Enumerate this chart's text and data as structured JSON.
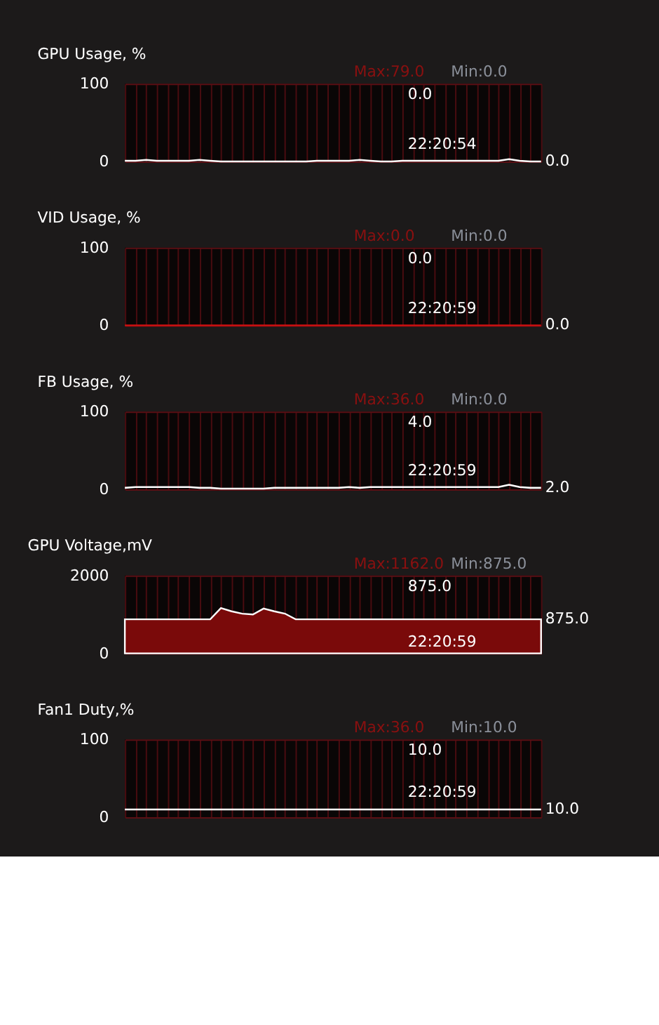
{
  "chart_data": [
    {
      "type": "line",
      "title": "GPU Usage, %",
      "categories": [
        null,
        null,
        null,
        null,
        null,
        null,
        null,
        null,
        null,
        null,
        null,
        null,
        null,
        null,
        null,
        null,
        null,
        null,
        null,
        null,
        null,
        null,
        null,
        null,
        null,
        null,
        null,
        null,
        null,
        null,
        null,
        null,
        null,
        null,
        null,
        null,
        null,
        null,
        null,
        null
      ],
      "ylim": [
        0,
        100
      ],
      "yticks": [
        0,
        100
      ],
      "tick_labels": "y",
      "grid": true,
      "series": [
        {
          "color": "#ffffff",
          "values": [
            1,
            1,
            2,
            1,
            1,
            1,
            1,
            2,
            1,
            0,
            0,
            0,
            0,
            0,
            0,
            0,
            0,
            0,
            1,
            1,
            1,
            1,
            2,
            1,
            0,
            0,
            1,
            1,
            1,
            1,
            1,
            1,
            1,
            1,
            1,
            1,
            3,
            1,
            0,
            0
          ]
        }
      ],
      "annotations": [
        "Max:79.0",
        "Min:0.0",
        "0.0",
        "22:20:54",
        "0.0"
      ]
    },
    {
      "type": "line",
      "title": "VID Usage, %",
      "categories": [
        null,
        null,
        null,
        null,
        null,
        null,
        null,
        null,
        null,
        null,
        null,
        null,
        null,
        null,
        null,
        null,
        null,
        null,
        null,
        null,
        null,
        null,
        null,
        null,
        null,
        null,
        null,
        null,
        null,
        null,
        null,
        null,
        null,
        null,
        null,
        null,
        null,
        null,
        null,
        null
      ],
      "ylim": [
        0,
        100
      ],
      "yticks": [
        0,
        100
      ],
      "tick_labels": "y",
      "grid": true,
      "series": [
        {
          "color": "#cc1111",
          "values": [
            0,
            0,
            0,
            0,
            0,
            0,
            0,
            0,
            0,
            0,
            0,
            0,
            0,
            0,
            0,
            0,
            0,
            0,
            0,
            0,
            0,
            0,
            0,
            0,
            0,
            0,
            0,
            0,
            0,
            0,
            0,
            0,
            0,
            0,
            0,
            0,
            0,
            0,
            0,
            0
          ]
        }
      ],
      "annotations": [
        "Max:0.0",
        "Min:0.0",
        "0.0",
        "22:20:59",
        "0.0"
      ]
    },
    {
      "type": "line",
      "title": "FB Usage, %",
      "categories": [
        null,
        null,
        null,
        null,
        null,
        null,
        null,
        null,
        null,
        null,
        null,
        null,
        null,
        null,
        null,
        null,
        null,
        null,
        null,
        null,
        null,
        null,
        null,
        null,
        null,
        null,
        null,
        null,
        null,
        null,
        null,
        null,
        null,
        null,
        null,
        null,
        null,
        null,
        null,
        null
      ],
      "ylim": [
        0,
        100
      ],
      "yticks": [
        0,
        100
      ],
      "tick_labels": "y",
      "grid": true,
      "series": [
        {
          "color": "#ffffff",
          "values": [
            2,
            3,
            3,
            3,
            3,
            3,
            3,
            2,
            2,
            1,
            1,
            1,
            1,
            1,
            2,
            2,
            2,
            2,
            2,
            2,
            2,
            3,
            2,
            3,
            3,
            3,
            3,
            3,
            3,
            3,
            3,
            3,
            3,
            3,
            3,
            3,
            6,
            3,
            2,
            2
          ]
        }
      ],
      "annotations": [
        "Max:36.0",
        "Min:0.0",
        "4.0",
        "22:20:59",
        "2.0"
      ]
    },
    {
      "type": "area",
      "title": "GPU Voltage,mV",
      "categories": [
        null,
        null,
        null,
        null,
        null,
        null,
        null,
        null,
        null,
        null,
        null,
        null,
        null,
        null,
        null,
        null,
        null,
        null,
        null,
        null,
        null,
        null,
        null,
        null,
        null,
        null,
        null,
        null,
        null,
        null,
        null,
        null,
        null,
        null,
        null,
        null,
        null,
        null,
        null,
        null
      ],
      "ylim": [
        0,
        2000
      ],
      "yticks": [
        0,
        2000
      ],
      "tick_labels": "y",
      "grid": true,
      "series": [
        {
          "color": "#7a0a0a",
          "values": [
            875,
            875,
            875,
            875,
            875,
            875,
            875,
            875,
            875,
            1162,
            1080,
            1020,
            1000,
            1150,
            1080,
            1020,
            875,
            875,
            875,
            875,
            875,
            875,
            875,
            875,
            875,
            875,
            875,
            875,
            875,
            875,
            875,
            875,
            875,
            875,
            875,
            875,
            875,
            875,
            875,
            875
          ]
        }
      ],
      "annotations": [
        "Max:1162.0",
        "Min:875.0",
        "875.0",
        "22:20:59",
        "875.0"
      ]
    },
    {
      "type": "line",
      "title": "Fan1 Duty,%",
      "categories": [
        null,
        null,
        null,
        null,
        null,
        null,
        null,
        null,
        null,
        null,
        null,
        null,
        null,
        null,
        null,
        null,
        null,
        null,
        null,
        null,
        null,
        null,
        null,
        null,
        null,
        null,
        null,
        null,
        null,
        null,
        null,
        null,
        null,
        null,
        null,
        null,
        null,
        null,
        null,
        null
      ],
      "ylim": [
        0,
        100
      ],
      "yticks": [
        0,
        100
      ],
      "tick_labels": "y",
      "grid": true,
      "series": [
        {
          "color": "#ffffff",
          "values": [
            10,
            10,
            10,
            10,
            10,
            10,
            10,
            10,
            10,
            10,
            10,
            10,
            10,
            10,
            10,
            10,
            10,
            10,
            10,
            10,
            10,
            10,
            10,
            10,
            10,
            10,
            10,
            10,
            10,
            10,
            10,
            10,
            10,
            10,
            10,
            10,
            10,
            10,
            10,
            10
          ]
        }
      ],
      "annotations": [
        "Max:36.0",
        "Min:10.0",
        "10.0",
        "22:20:59",
        "10.0"
      ]
    }
  ]
}
